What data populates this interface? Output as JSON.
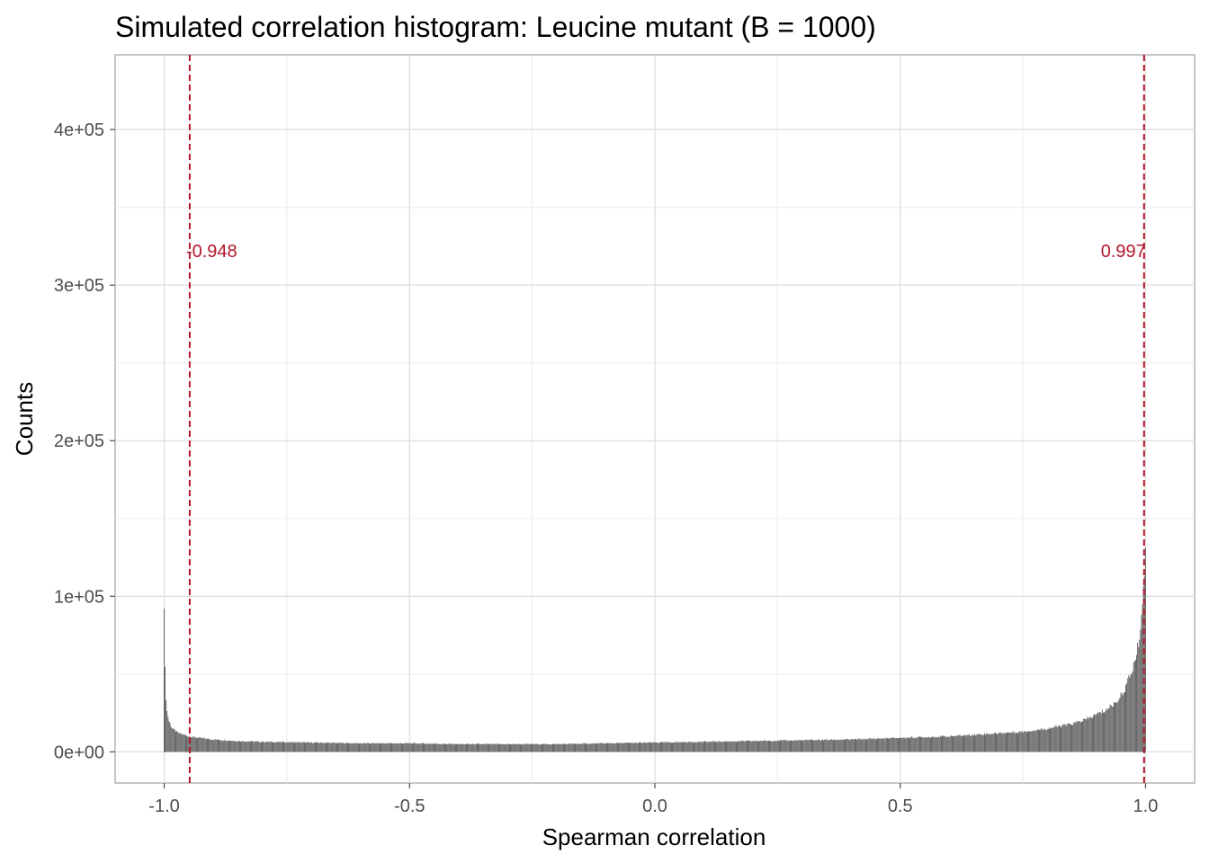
{
  "chart_data": {
    "type": "bar",
    "title": "Simulated correlation histogram: Leucine mutant (B = 1000)",
    "xlabel": "Spearman correlation",
    "ylabel": "Counts",
    "xlim": [
      -1.1,
      1.1
    ],
    "ylim": [
      -20000,
      448000
    ],
    "x_ticks": [
      -1.0,
      -0.5,
      0.0,
      0.5,
      1.0
    ],
    "x_tick_labels": [
      "-1.0",
      "-0.5",
      "0.0",
      "0.5",
      "1.0"
    ],
    "y_ticks": [
      0,
      100000,
      200000,
      300000,
      400000
    ],
    "y_tick_labels": [
      "0e+00",
      "1e+05",
      "2e+05",
      "3e+05",
      "4e+05"
    ],
    "grid": true,
    "bar_color": "#595959",
    "bin_width": 0.002,
    "histogram_profile": {
      "x": [
        -1.0,
        -0.998,
        -0.996,
        -0.994,
        -0.99,
        -0.985,
        -0.98,
        -0.97,
        -0.96,
        -0.95,
        -0.93,
        -0.9,
        -0.85,
        -0.8,
        -0.7,
        -0.6,
        -0.5,
        -0.4,
        -0.3,
        -0.2,
        -0.1,
        0.0,
        0.1,
        0.2,
        0.3,
        0.4,
        0.5,
        0.6,
        0.7,
        0.75,
        0.8,
        0.85,
        0.88,
        0.9,
        0.92,
        0.94,
        0.95,
        0.96,
        0.97,
        0.98,
        0.985,
        0.99,
        0.994,
        0.998,
        1.0
      ],
      "counts": [
        98000,
        52000,
        35000,
        26000,
        20000,
        16000,
        14000,
        12000,
        11000,
        10000,
        9000,
        8000,
        7000,
        6500,
        6000,
        5500,
        5500,
        5000,
        5000,
        5000,
        5500,
        6000,
        6500,
        7000,
        7500,
        8000,
        9000,
        10000,
        12000,
        13000,
        15000,
        18000,
        21000,
        24000,
        27000,
        32000,
        36000,
        42000,
        50000,
        60000,
        68000,
        80000,
        95000,
        120000,
        125000
      ]
    },
    "reference_lines": [
      {
        "x": -0.948,
        "label": "-0.948",
        "label_y": 318000
      },
      {
        "x": 0.997,
        "label": "0.997",
        "label_y": 318000
      }
    ],
    "reference_color": "#b2182b"
  }
}
